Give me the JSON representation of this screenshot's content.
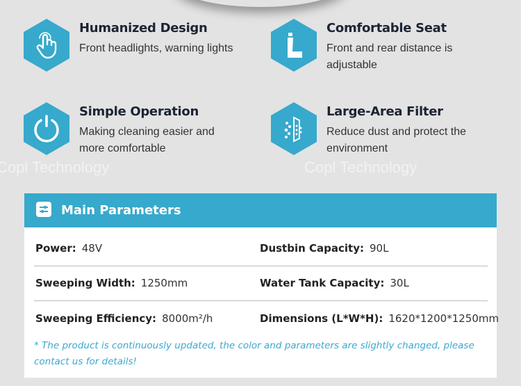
{
  "watermark": "Copl Technology",
  "features": [
    {
      "icon": "hand-pointer-icon",
      "title": "Humanized Design",
      "desc": "Front headlights, warning lights"
    },
    {
      "icon": "seat-icon",
      "title": "Comfortable Seat",
      "desc": "Front and rear distance is adjustable"
    },
    {
      "icon": "power-icon",
      "title": "Simple Operation",
      "desc": "Making cleaning easier and more comfortable"
    },
    {
      "icon": "filter-icon",
      "title": "Large-Area Filter",
      "desc": "Reduce dust and protect the environment"
    }
  ],
  "params": {
    "title": "Main Parameters",
    "rows": [
      [
        {
          "label": "Power:",
          "value": "48V"
        },
        {
          "label": "Dustbin Capacity:",
          "value": "90L"
        }
      ],
      [
        {
          "label": "Sweeping Width:",
          "value": "1250mm"
        },
        {
          "label": "Water Tank Capacity:",
          "value": "30L"
        }
      ],
      [
        {
          "label": "Sweeping Efficiency:",
          "value": "8000m²/h"
        },
        {
          "label": "Dimensions (L*W*H):",
          "value": "1620*1200*1250mm"
        }
      ]
    ],
    "note": "* The product is continuously updated, the color and parameters are slightly changed, please contact us for details!"
  },
  "colors": {
    "accent": "#37a9cc",
    "note": "#3aa9cf",
    "title": "#1c2433"
  }
}
